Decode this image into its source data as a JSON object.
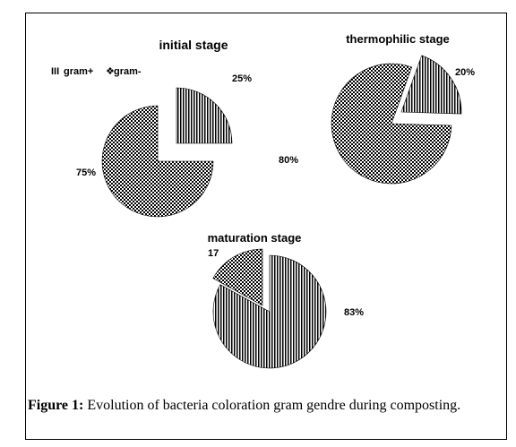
{
  "chart_data": [
    {
      "type": "pie",
      "title": "initial stage",
      "categories": [
        "gram+",
        "gram-"
      ],
      "values": [
        25,
        75
      ],
      "data_labels": [
        "25%",
        "75%"
      ],
      "exploded": "gram+"
    },
    {
      "type": "pie",
      "title": "thermophilic stage",
      "categories": [
        "gram+",
        "gram-"
      ],
      "values": [
        20,
        80
      ],
      "data_labels": [
        "20%",
        "80%"
      ],
      "exploded": "gram+"
    },
    {
      "type": "pie",
      "title": "maturation stage",
      "categories": [
        "gram+",
        "gram-"
      ],
      "values": [
        83,
        17
      ],
      "data_labels": [
        "83%",
        "17"
      ],
      "exploded": "gram-"
    }
  ],
  "legend": {
    "items": [
      {
        "symbol": "III",
        "label": "gram+",
        "pattern": "vertical-stripes"
      },
      {
        "symbol": "❖",
        "label": "gram-",
        "pattern": "checkerboard"
      }
    ],
    "placement": "top-left"
  },
  "caption": {
    "prefix": "Figure 1:",
    "text": " Evolution of bacteria coloration gram gendre during composting."
  }
}
